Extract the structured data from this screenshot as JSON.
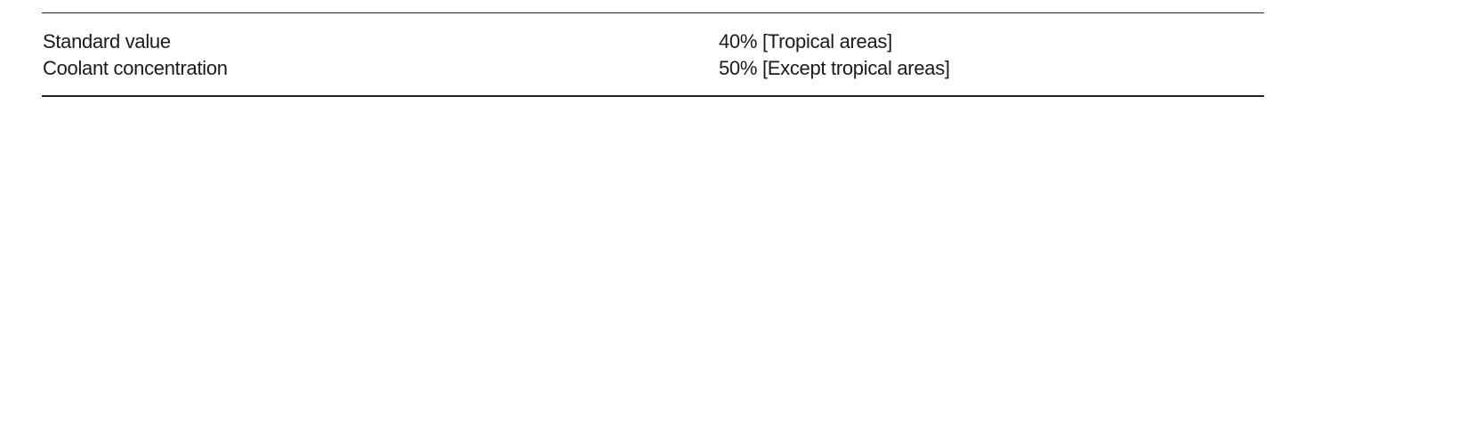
{
  "table": {
    "rows": [
      {
        "label": "Standard value",
        "value": "40% [Tropical areas]"
      },
      {
        "label": "Coolant concentration",
        "value": "50% [Except tropical areas]"
      }
    ]
  }
}
